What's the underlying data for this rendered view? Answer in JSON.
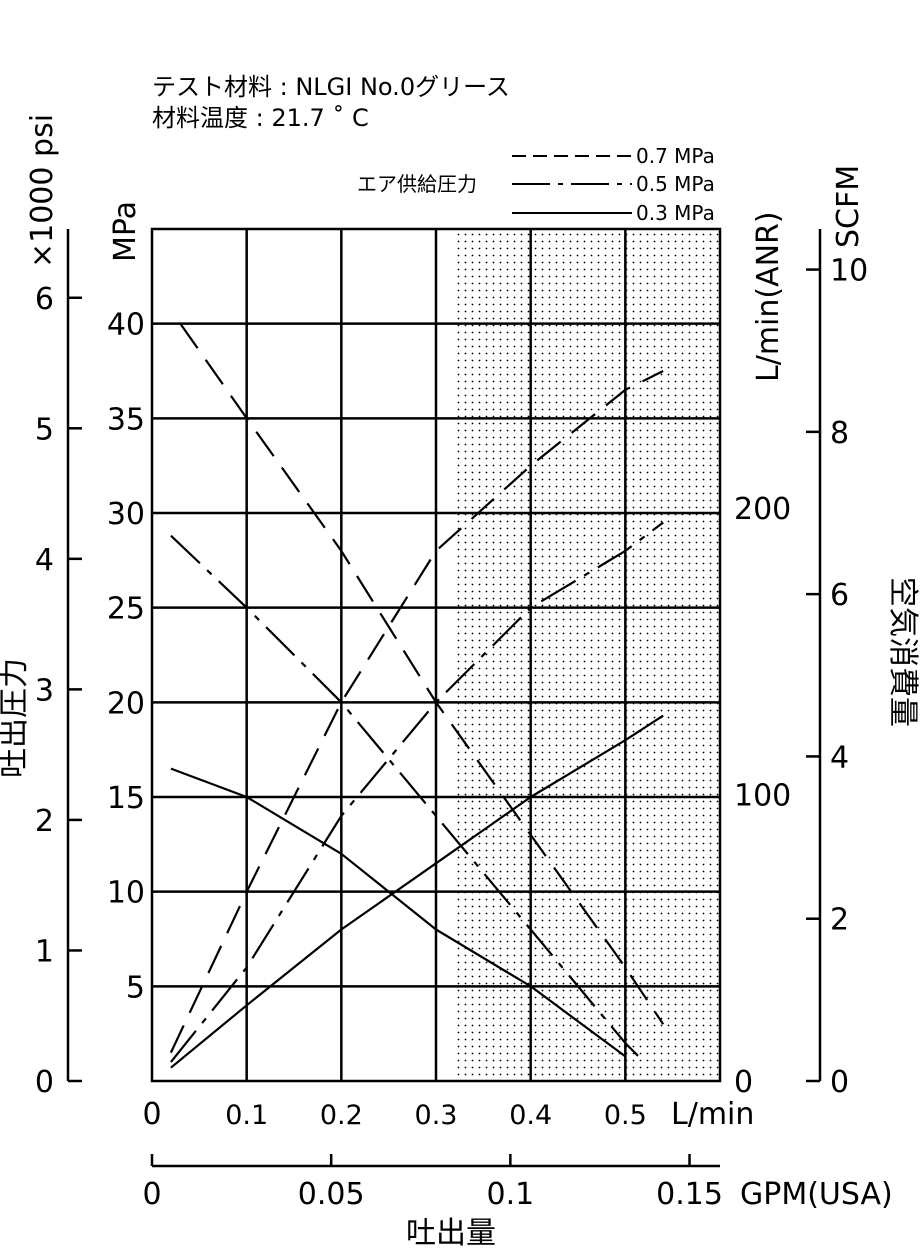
{
  "notes": {
    "test_material": "テスト材料 : NLGI No.0グリース",
    "material_temp": "材料温度 : 21.7 ˚ C"
  },
  "legend": {
    "title": "エア供給圧力",
    "entries": [
      {
        "label": "0.7 MPa",
        "dash": "dashed"
      },
      {
        "label": "0.5 MPa",
        "dash": "dash-dot"
      },
      {
        "label": "0.3 MPa",
        "dash": "solid"
      }
    ]
  },
  "axes": {
    "psi_label": "×1000 psi",
    "psi_ticks": [
      "0",
      "1",
      "2",
      "3",
      "4",
      "5",
      "6"
    ],
    "mpa_label": "MPa",
    "mpa_ticks": [
      "5",
      "10",
      "15",
      "20",
      "25",
      "30",
      "35",
      "40"
    ],
    "left_title": "吐出圧力",
    "lmin_unit": "L/min",
    "lmin_ticks": [
      "0",
      "0.1",
      "0.2",
      "0.3",
      "0.4",
      "0.5"
    ],
    "gpm_label": "GPM(USA)",
    "gpm_ticks": [
      "0",
      "0.05",
      "0.1",
      "0.15"
    ],
    "bottom_title": "吐出量",
    "anr_label": "L/min(ANR)",
    "anr_ticks": [
      "0",
      "100",
      "200"
    ],
    "scfm_label": "SCFM",
    "scfm_ticks": [
      "0",
      "2",
      "4",
      "6",
      "8",
      "10"
    ],
    "right_title": "空気消費量"
  },
  "chart_data": {
    "type": "line",
    "x_unit": "L/min",
    "xlim": [
      0,
      0.6
    ],
    "ylim_mpa": [
      0,
      45
    ],
    "shaded_region_x_from": 0.32,
    "grid": true,
    "series": [
      {
        "name": "0.7 MPa",
        "kind": "discharge_pressure",
        "dash": "dashed",
        "x": [
          0.03,
          0.1,
          0.2,
          0.3,
          0.4,
          0.5,
          0.54
        ],
        "y": [
          40,
          35,
          28,
          20,
          13,
          6,
          3
        ]
      },
      {
        "name": "0.5 MPa",
        "kind": "discharge_pressure",
        "dash": "dash-dot",
        "x": [
          0.02,
          0.1,
          0.2,
          0.3,
          0.4,
          0.5,
          0.52
        ],
        "y": [
          28.8,
          25,
          20,
          14,
          8,
          2,
          1
        ]
      },
      {
        "name": "0.3 MPa",
        "kind": "discharge_pressure",
        "dash": "solid",
        "x": [
          0.02,
          0.1,
          0.2,
          0.3,
          0.4,
          0.5
        ],
        "y": [
          16.5,
          15,
          12,
          8,
          5,
          1.3
        ]
      },
      {
        "name": "0.7 MPa",
        "kind": "air_consumption",
        "dash": "dashed",
        "x": [
          0.02,
          0.1,
          0.2,
          0.3,
          0.4,
          0.5,
          0.54
        ],
        "y": [
          1.5,
          10,
          20,
          28,
          32.5,
          36.5,
          37.5
        ]
      },
      {
        "name": "0.5 MPa",
        "kind": "air_consumption",
        "dash": "dash-dot",
        "x": [
          0.02,
          0.1,
          0.2,
          0.3,
          0.4,
          0.5,
          0.54
        ],
        "y": [
          1,
          6,
          14,
          20,
          25,
          28,
          29.5
        ]
      },
      {
        "name": "0.3 MPa",
        "kind": "air_consumption",
        "dash": "solid",
        "x": [
          0.02,
          0.1,
          0.2,
          0.3,
          0.4,
          0.5,
          0.54
        ],
        "y": [
          0.7,
          4,
          8,
          11.5,
          15,
          18,
          19.3
        ]
      }
    ]
  }
}
